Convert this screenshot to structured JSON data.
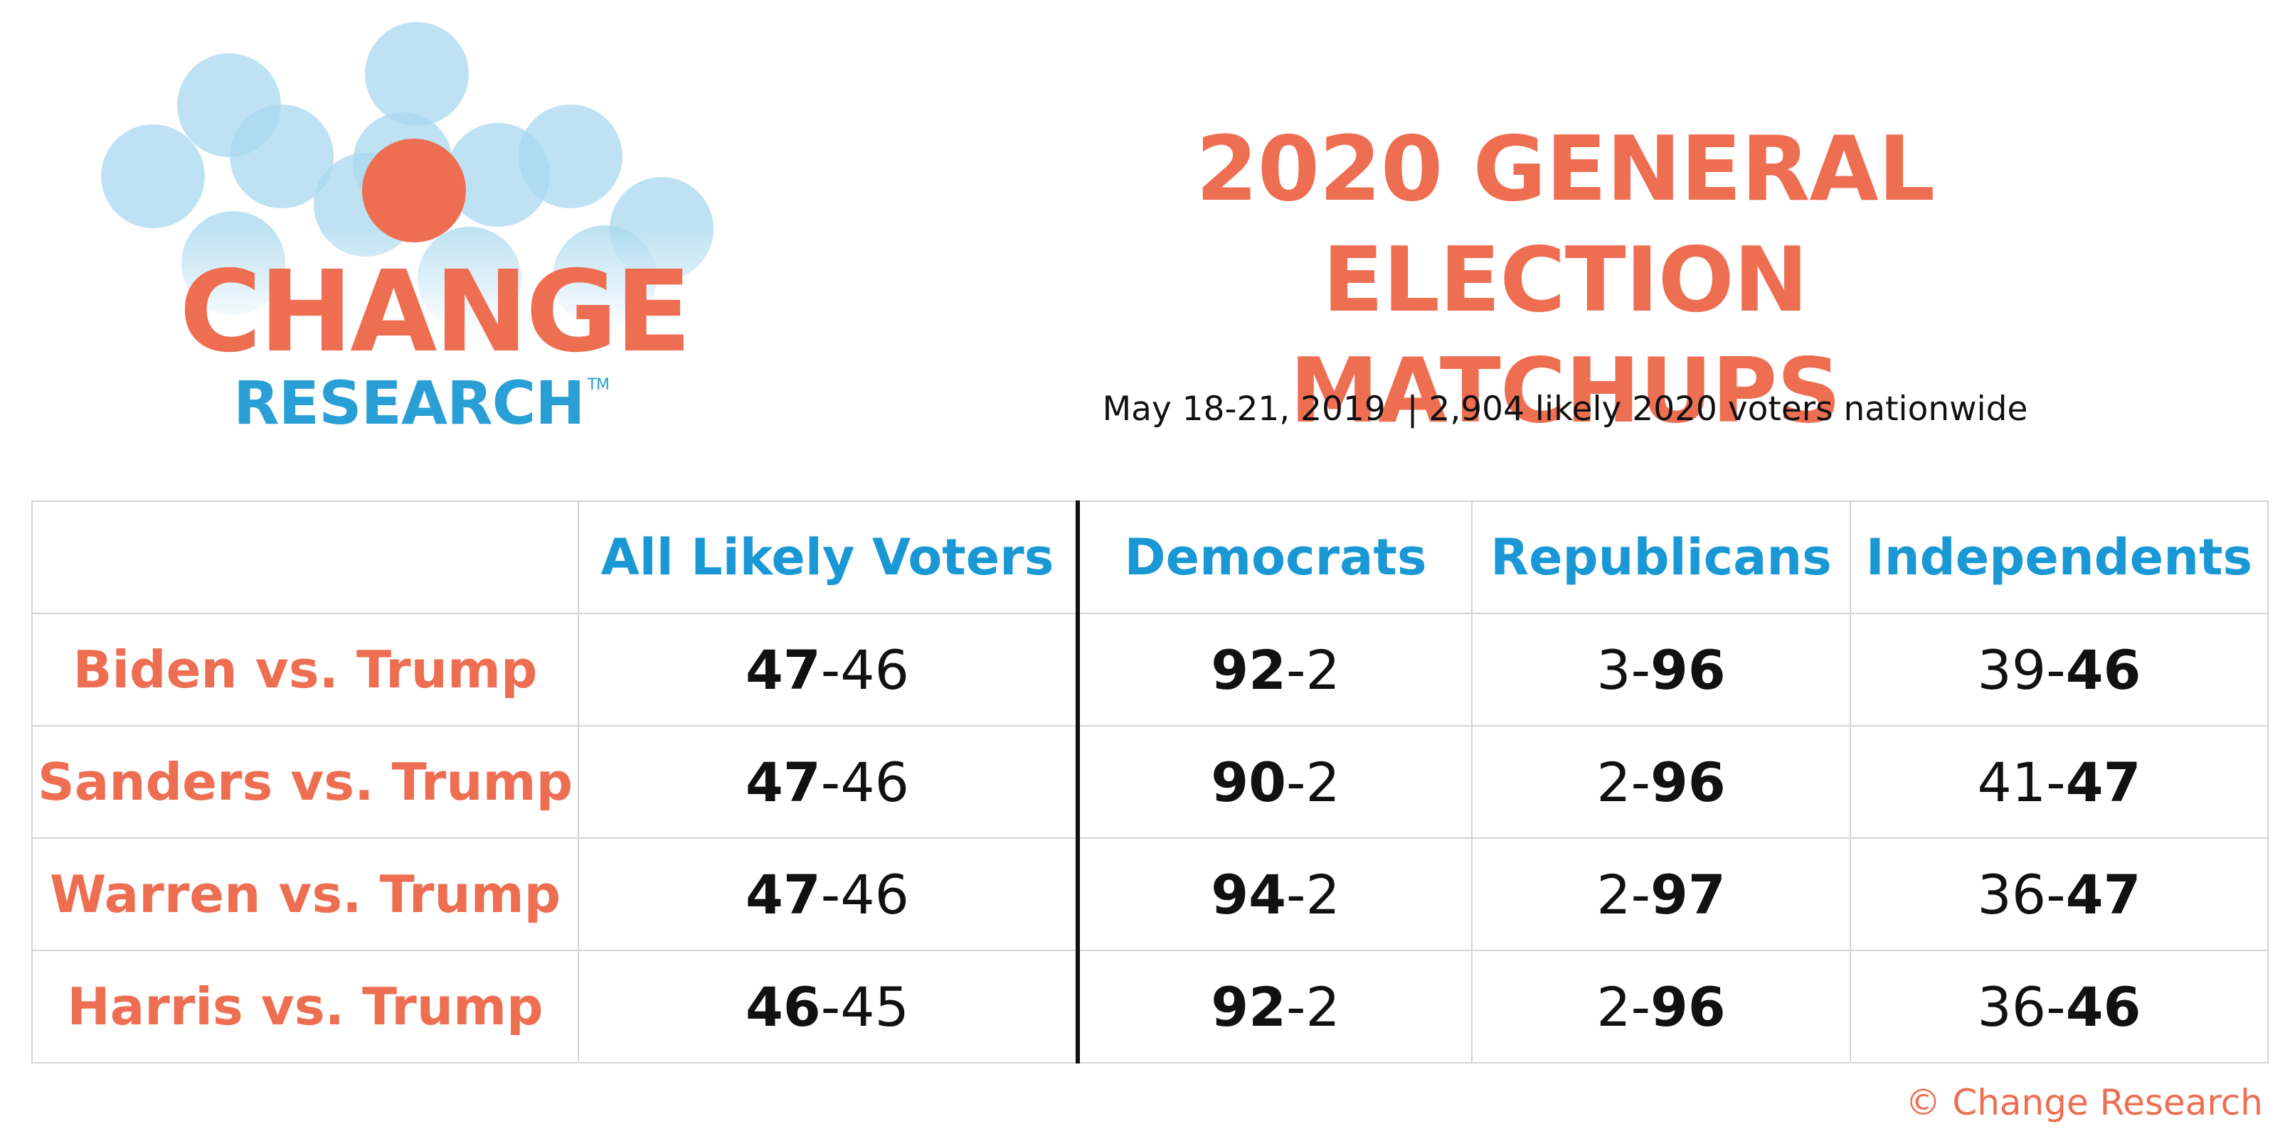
{
  "logo": {
    "word1": "CHANGE",
    "word2": "RESEARCH",
    "tm": "TM",
    "colors": {
      "orange": "#ee6e52",
      "blue": "#2a9fd6",
      "bubble": "#a8d8ef"
    }
  },
  "title_line1": "2020 GENERAL ELECTION",
  "title_line2": "MATCHUPS",
  "subtitle": "May 18-21, 2019  | 2,904 likely 2020 voters nationwide",
  "footer": "© Change Research",
  "colors": {
    "accent": "#ee6e52",
    "header": "#1a98d5",
    "grid": "#d4d4d4"
  },
  "chart_data": {
    "type": "table",
    "title": "2020 GENERAL ELECTION MATCHUPS",
    "subtitle": "May 18-21, 2019  | 2,904 likely 2020 voters nationwide",
    "columns": [
      "All Likely Voters",
      "Democrats",
      "Republicans",
      "Independents"
    ],
    "rows": [
      {
        "label": "Biden vs. Trump",
        "cells": [
          {
            "dem": "47",
            "rep": "46",
            "bold": "dem"
          },
          {
            "dem": "92",
            "rep": "2",
            "bold": "dem"
          },
          {
            "dem": "3",
            "rep": "96",
            "bold": "rep"
          },
          {
            "dem": "39",
            "rep": "46",
            "bold": "rep"
          }
        ]
      },
      {
        "label": "Sanders vs. Trump",
        "cells": [
          {
            "dem": "47",
            "rep": "46",
            "bold": "dem"
          },
          {
            "dem": "90",
            "rep": "2",
            "bold": "dem"
          },
          {
            "dem": "2",
            "rep": "96",
            "bold": "rep"
          },
          {
            "dem": "41",
            "rep": "47",
            "bold": "rep"
          }
        ]
      },
      {
        "label": "Warren vs. Trump",
        "cells": [
          {
            "dem": "47",
            "rep": "46",
            "bold": "dem"
          },
          {
            "dem": "94",
            "rep": "2",
            "bold": "dem"
          },
          {
            "dem": "2",
            "rep": "97",
            "bold": "rep"
          },
          {
            "dem": "36",
            "rep": "47",
            "bold": "rep"
          }
        ]
      },
      {
        "label": "Harris vs. Trump",
        "cells": [
          {
            "dem": "46",
            "rep": "45",
            "bold": "dem"
          },
          {
            "dem": "92",
            "rep": "2",
            "bold": "dem"
          },
          {
            "dem": "2",
            "rep": "96",
            "bold": "rep"
          },
          {
            "dem": "36",
            "rep": "46",
            "bold": "rep"
          }
        ]
      }
    ]
  }
}
